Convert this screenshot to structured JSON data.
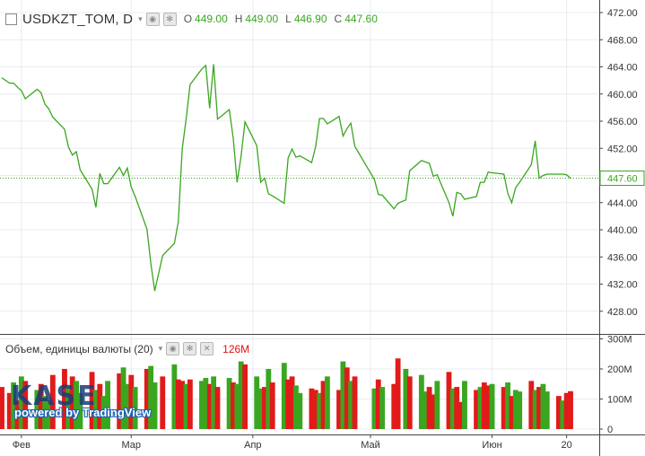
{
  "header": {
    "symbol": "USDKZT_TOM, D",
    "o_label": "O",
    "o_value": "449.00",
    "h_label": "H",
    "h_value": "449.00",
    "l_label": "L",
    "l_value": "446.90",
    "c_label": "C",
    "c_value": "447.60",
    "eye_icon": "eye-icon",
    "settings_icon": "gear-icon"
  },
  "volume_header": {
    "label": "Объем, единицы валюты (20)",
    "value": "126M",
    "caret": "▾"
  },
  "watermark": {
    "logo": "KASE",
    "powered_by": "powered by TradingView"
  },
  "colors": {
    "price_line": "#3aa620",
    "vol_up": "#3aa620",
    "vol_down": "#e21a1a",
    "last_price_line": "#3aa620",
    "grid": "#e8ecef",
    "axis": "#444444"
  },
  "chart_data": [
    {
      "type": "line",
      "title": "USDKZT_TOM, D",
      "x_dates": [
        "2018-01-27",
        "2018-01-29",
        "2018-01-30",
        "2018-01-31",
        "2018-02-01",
        "2018-02-02",
        "2018-02-05",
        "2018-02-06",
        "2018-02-07",
        "2018-02-08",
        "2018-02-09",
        "2018-02-12",
        "2018-02-13",
        "2018-02-14",
        "2018-02-15",
        "2018-02-16",
        "2018-02-19",
        "2018-02-20",
        "2018-02-21",
        "2018-02-22",
        "2018-02-23",
        "2018-02-26",
        "2018-02-27",
        "2018-02-28",
        "2018-03-01",
        "2018-03-02",
        "2018-03-05",
        "2018-03-06",
        "2018-03-07",
        "2018-03-09",
        "2018-03-12",
        "2018-03-13",
        "2018-03-14",
        "2018-03-15",
        "2018-03-16",
        "2018-03-19",
        "2018-03-20",
        "2018-03-21",
        "2018-03-22",
        "2018-03-23",
        "2018-03-26",
        "2018-03-27",
        "2018-03-28",
        "2018-03-29",
        "2018-03-30",
        "2018-04-02",
        "2018-04-03",
        "2018-04-04",
        "2018-04-05",
        "2018-04-06",
        "2018-04-09",
        "2018-04-10",
        "2018-04-11",
        "2018-04-12",
        "2018-04-13",
        "2018-04-16",
        "2018-04-17",
        "2018-04-18",
        "2018-04-19",
        "2018-04-20",
        "2018-04-23",
        "2018-04-24",
        "2018-04-25",
        "2018-04-26",
        "2018-04-27",
        "2018-05-02",
        "2018-05-03",
        "2018-05-04",
        "2018-05-07",
        "2018-05-08",
        "2018-05-10",
        "2018-05-11",
        "2018-05-14",
        "2018-05-15",
        "2018-05-16",
        "2018-05-17",
        "2018-05-18",
        "2018-05-21",
        "2018-05-22",
        "2018-05-23",
        "2018-05-24",
        "2018-05-25",
        "2018-05-28",
        "2018-05-29",
        "2018-05-30",
        "2018-05-31",
        "2018-06-01",
        "2018-06-04",
        "2018-06-05",
        "2018-06-06",
        "2018-06-07",
        "2018-06-08",
        "2018-06-11",
        "2018-06-12",
        "2018-06-13",
        "2018-06-14",
        "2018-06-15",
        "2018-06-18",
        "2018-06-19",
        "2018-06-20",
        "2018-06-21"
      ],
      "y_values": [
        462.4,
        461.6,
        461.6,
        461.0,
        460.5,
        459.3,
        460.7,
        460.2,
        458.5,
        457.8,
        456.6,
        454.8,
        452.2,
        451.0,
        451.5,
        448.8,
        446.0,
        443.3,
        448.3,
        446.8,
        446.8,
        449.2,
        448.0,
        449.1,
        446.3,
        444.9,
        440.1,
        435.0,
        431.0,
        436.2,
        438.0,
        441.2,
        451.9,
        456.3,
        461.4,
        463.7,
        464.2,
        457.9,
        464.4,
        456.3,
        457.7,
        453.5,
        447.0,
        450.8,
        455.9,
        452.4,
        447.0,
        447.6,
        445.3,
        445.0,
        443.9,
        450.6,
        451.9,
        450.7,
        450.9,
        449.9,
        452.2,
        456.4,
        456.4,
        455.6,
        456.7,
        453.8,
        454.9,
        455.7,
        452.3,
        447.4,
        445.2,
        445.1,
        443.1,
        443.9,
        444.4,
        448.7,
        450.2,
        450.0,
        449.8,
        447.9,
        448.1,
        444.0,
        442.0,
        445.5,
        445.3,
        444.5,
        444.9,
        447.0,
        447.0,
        448.5,
        448.4,
        448.2,
        445.4,
        444.0,
        446.2,
        447.0,
        449.6,
        453.1,
        447.6,
        448.0,
        448.2,
        448.2,
        448.2,
        448.1,
        447.6
      ],
      "last_value": "447.60",
      "ylim": [
        424,
        473
      ],
      "y_ticks": [
        "472.00",
        "468.00",
        "464.00",
        "460.00",
        "456.00",
        "452.00",
        "448.00",
        "444.00",
        "440.00",
        "436.00",
        "432.00",
        "428.00"
      ],
      "x_tick_labels": [
        "Фев",
        "Мар",
        "Апр",
        "Май",
        "Июн",
        "20"
      ],
      "x_tick_dates": [
        "2018-02-01",
        "2018-03-01",
        "2018-04-01",
        "2018-05-01",
        "2018-06-01",
        "2018-06-20"
      ],
      "grid": true
    },
    {
      "type": "bar",
      "title": "Объем, единицы валюты (20)",
      "x_dates": [
        "2018-01-27",
        "2018-01-29",
        "2018-01-30",
        "2018-01-31",
        "2018-02-01",
        "2018-02-02",
        "2018-02-05",
        "2018-02-06",
        "2018-02-07",
        "2018-02-08",
        "2018-02-09",
        "2018-02-12",
        "2018-02-13",
        "2018-02-14",
        "2018-02-15",
        "2018-02-16",
        "2018-02-19",
        "2018-02-20",
        "2018-02-21",
        "2018-02-22",
        "2018-02-23",
        "2018-02-26",
        "2018-02-27",
        "2018-02-28",
        "2018-03-01",
        "2018-03-02",
        "2018-03-05",
        "2018-03-06",
        "2018-03-07",
        "2018-03-09",
        "2018-03-12",
        "2018-03-13",
        "2018-03-14",
        "2018-03-15",
        "2018-03-16",
        "2018-03-19",
        "2018-03-20",
        "2018-03-21",
        "2018-03-22",
        "2018-03-23",
        "2018-03-26",
        "2018-03-27",
        "2018-03-28",
        "2018-03-29",
        "2018-03-30",
        "2018-04-02",
        "2018-04-03",
        "2018-04-04",
        "2018-04-05",
        "2018-04-06",
        "2018-04-09",
        "2018-04-10",
        "2018-04-11",
        "2018-04-12",
        "2018-04-13",
        "2018-04-16",
        "2018-04-17",
        "2018-04-18",
        "2018-04-19",
        "2018-04-20",
        "2018-04-23",
        "2018-04-24",
        "2018-04-25",
        "2018-04-26",
        "2018-04-27",
        "2018-05-02",
        "2018-05-03",
        "2018-05-04",
        "2018-05-07",
        "2018-05-08",
        "2018-05-10",
        "2018-05-11",
        "2018-05-14",
        "2018-05-15",
        "2018-05-16",
        "2018-05-17",
        "2018-05-18",
        "2018-05-21",
        "2018-05-22",
        "2018-05-23",
        "2018-05-24",
        "2018-05-25",
        "2018-05-28",
        "2018-05-29",
        "2018-05-30",
        "2018-05-31",
        "2018-06-01",
        "2018-06-04",
        "2018-06-05",
        "2018-06-06",
        "2018-06-07",
        "2018-06-08",
        "2018-06-11",
        "2018-06-12",
        "2018-06-13",
        "2018-06-14",
        "2018-06-15",
        "2018-06-18",
        "2018-06-19",
        "2018-06-20",
        "2018-06-21"
      ],
      "values": [
        140,
        120,
        155,
        95,
        175,
        160,
        130,
        150,
        110,
        95,
        180,
        200,
        140,
        175,
        160,
        120,
        190,
        130,
        150,
        110,
        160,
        185,
        205,
        150,
        180,
        140,
        200,
        210,
        155,
        175,
        215,
        165,
        160,
        150,
        165,
        160,
        170,
        150,
        175,
        140,
        170,
        155,
        150,
        225,
        215,
        175,
        135,
        140,
        200,
        155,
        220,
        165,
        175,
        145,
        120,
        135,
        130,
        120,
        160,
        175,
        130,
        225,
        205,
        160,
        175,
        135,
        165,
        140,
        150,
        235,
        200,
        175,
        180,
        125,
        140,
        115,
        160,
        190,
        135,
        140,
        90,
        160,
        130,
        140,
        155,
        145,
        150,
        140,
        155,
        110,
        130,
        125,
        160,
        130,
        140,
        150,
        125,
        110,
        95,
        120,
        126
      ],
      "up": [
        false,
        false,
        true,
        false,
        true,
        false,
        true,
        false,
        true,
        true,
        false,
        false,
        true,
        false,
        true,
        true,
        false,
        true,
        false,
        true,
        true,
        false,
        true,
        true,
        false,
        true,
        false,
        true,
        true,
        false,
        true,
        false,
        false,
        true,
        false,
        true,
        true,
        false,
        true,
        false,
        true,
        false,
        true,
        true,
        false,
        true,
        true,
        false,
        true,
        false,
        true,
        false,
        false,
        true,
        true,
        false,
        false,
        true,
        false,
        true,
        false,
        true,
        false,
        true,
        false,
        true,
        false,
        true,
        false,
        false,
        true,
        false,
        true,
        true,
        false,
        false,
        true,
        false,
        true,
        false,
        false,
        true,
        false,
        true,
        false,
        false,
        true,
        false,
        true,
        false,
        true,
        true,
        false,
        true,
        false,
        true,
        true,
        false,
        true,
        false,
        false
      ],
      "last_value": "126M",
      "ylim": [
        0,
        300
      ],
      "y_ticks": [
        "300M",
        "200M",
        "100M",
        "0"
      ]
    }
  ]
}
